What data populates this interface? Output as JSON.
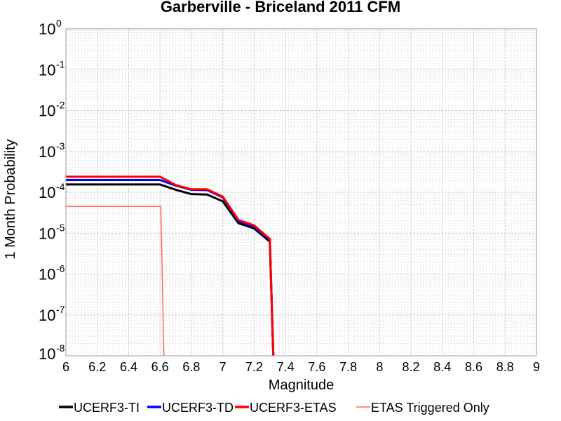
{
  "chart_data": {
    "type": "line",
    "title": "Garberville - Briceland 2011 CFM",
    "xlabel": "Magnitude",
    "ylabel": "1 Month Probability",
    "xlim": [
      6,
      9
    ],
    "ylim": [
      1e-08,
      1
    ],
    "yscale": "log",
    "grid": true,
    "legend_position": "bottom",
    "x_ticks": [
      "6",
      "6.2",
      "6.4",
      "6.6",
      "6.8",
      "7",
      "7.2",
      "7.4",
      "7.6",
      "7.8",
      "8",
      "8.2",
      "8.4",
      "8.6",
      "8.8",
      "9"
    ],
    "y_ticks": [
      {
        "base": "10",
        "exp": "0"
      },
      {
        "base": "10",
        "exp": "-1"
      },
      {
        "base": "10",
        "exp": "-2"
      },
      {
        "base": "10",
        "exp": "-3"
      },
      {
        "base": "10",
        "exp": "-4"
      },
      {
        "base": "10",
        "exp": "-5"
      },
      {
        "base": "10",
        "exp": "-6"
      },
      {
        "base": "10",
        "exp": "-7"
      },
      {
        "base": "10",
        "exp": "-8"
      }
    ],
    "series": [
      {
        "name": "UCERF3-TI",
        "color": "#000000",
        "width": 3,
        "x": [
          6.0,
          6.6,
          6.7,
          6.8,
          6.9,
          7.0,
          7.1,
          7.2,
          7.3,
          7.33
        ],
        "y": [
          0.000155,
          0.000155,
          0.000115,
          9e-05,
          8.8e-05,
          6e-05,
          1.75e-05,
          1.3e-05,
          6.2e-06,
          1e-09
        ]
      },
      {
        "name": "UCERF3-TD",
        "color": "#0000ff",
        "width": 3,
        "x": [
          6.0,
          6.6,
          6.7,
          6.8,
          6.9,
          7.0,
          7.1,
          7.2,
          7.3,
          7.33
        ],
        "y": [
          0.0002,
          0.0002,
          0.000145,
          0.000115,
          0.000113,
          7.5e-05,
          1.95e-05,
          1.45e-05,
          6.8e-06,
          1e-09
        ]
      },
      {
        "name": "UCERF3-ETAS",
        "color": "#ff0000",
        "width": 3,
        "x": [
          6.0,
          6.6,
          6.7,
          6.8,
          6.9,
          7.0,
          7.1,
          7.2,
          7.3,
          7.33
        ],
        "y": [
          0.00024,
          0.00024,
          0.00015,
          0.000118,
          0.000118,
          7.8e-05,
          2.1e-05,
          1.55e-05,
          7.2e-06,
          1e-09
        ]
      },
      {
        "name": "ETAS Triggered Only",
        "color": "#ff6666",
        "width": 1.5,
        "x": [
          6.0,
          6.605,
          6.63
        ],
        "y": [
          4.5e-05,
          4.5e-05,
          1e-09
        ]
      }
    ]
  }
}
